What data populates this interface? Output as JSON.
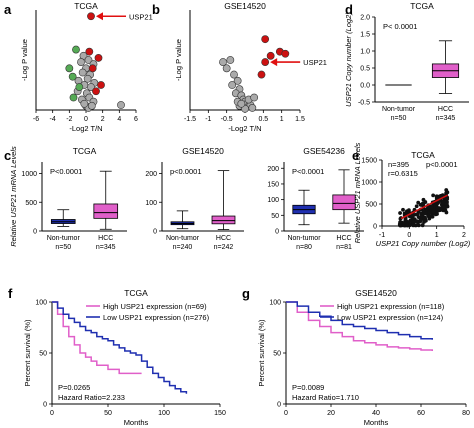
{
  "chart_data": [
    {
      "panel": "a",
      "type": "scatter",
      "title": "TCGA",
      "xlabel": "-Log2 T/N",
      "ylabel": "-Log P value",
      "xlim": [
        -6,
        6
      ],
      "ylim": [
        0,
        24
      ],
      "xticks": [
        "-6",
        "-4",
        "-2",
        "0",
        "2",
        "4",
        "6"
      ],
      "callout": "USP21",
      "callout_point": [
        0.6,
        22.5
      ],
      "series": [
        {
          "color": "#cc1111",
          "points": [
            [
              0.6,
              22.5
            ],
            [
              0.4,
              14
            ],
            [
              1.5,
              12.5
            ],
            [
              0.8,
              10
            ],
            [
              1.8,
              6
            ],
            [
              1.2,
              4.5
            ]
          ]
        },
        {
          "color": "#55aa55",
          "points": [
            [
              -1.2,
              14.5
            ],
            [
              -2.0,
              10
            ],
            [
              -1.6,
              8
            ],
            [
              -0.8,
              5.5
            ],
            [
              -1.5,
              3
            ]
          ]
        },
        {
          "color": "#aaaaaa",
          "points": [
            [
              -0.3,
              13
            ],
            [
              0.3,
              12
            ],
            [
              -0.6,
              11.5
            ],
            [
              0.9,
              11
            ],
            [
              0,
              10
            ],
            [
              -0.4,
              9
            ],
            [
              0.5,
              8.5
            ],
            [
              0.2,
              7.5
            ],
            [
              -0.9,
              7
            ],
            [
              1.0,
              6.5
            ],
            [
              -0.2,
              6
            ],
            [
              0.6,
              5.5
            ],
            [
              -1.0,
              4.5
            ],
            [
              0.1,
              4
            ],
            [
              0.4,
              3
            ],
            [
              -0.5,
              2.5
            ],
            [
              0.9,
              2
            ],
            [
              0,
              1
            ],
            [
              0.3,
              0.5
            ],
            [
              4.2,
              1.2
            ],
            [
              -0.2,
              1.5
            ],
            [
              0.7,
              1
            ]
          ]
        }
      ]
    },
    {
      "panel": "b",
      "type": "scatter",
      "title": "GSE14520",
      "xlabel": "-Log2 T/N",
      "ylabel": "-Log P value",
      "xlim": [
        -1.5,
        1.5
      ],
      "ylim": [
        0,
        24
      ],
      "xticks": [
        "-1.5",
        "-1",
        "-0.5",
        "0",
        "0.5",
        "1",
        "1.5"
      ],
      "callout": "USP21",
      "callout_point": [
        0.55,
        11.5
      ],
      "series": [
        {
          "color": "#cc1111",
          "points": [
            [
              0.55,
              11.5
            ],
            [
              0.95,
              14
            ],
            [
              0.55,
              17
            ],
            [
              0.7,
              13
            ],
            [
              0.45,
              8.5
            ],
            [
              1.1,
              13.5
            ]
          ]
        },
        {
          "color": "#aaaaaa",
          "points": [
            [
              -0.6,
              11.5
            ],
            [
              -0.4,
              12
            ],
            [
              -0.5,
              10
            ],
            [
              -0.3,
              8.5
            ],
            [
              -0.2,
              7
            ],
            [
              -0.35,
              6
            ],
            [
              -0.15,
              5
            ],
            [
              -0.25,
              4
            ],
            [
              -0.1,
              3.5
            ],
            [
              -0.05,
              2.5
            ],
            [
              0,
              2
            ],
            [
              0.05,
              1.5
            ],
            [
              -0.15,
              1
            ],
            [
              0.1,
              0.8
            ],
            [
              0.15,
              1.2
            ],
            [
              -0.2,
              2
            ],
            [
              0.2,
              0.5
            ],
            [
              0,
              0.3
            ],
            [
              0.1,
              2.5
            ],
            [
              -0.1,
              1.5
            ],
            [
              0.25,
              3
            ]
          ]
        }
      ]
    },
    {
      "panel": "c",
      "type": "box",
      "title": "TCGA",
      "ylabel": "Relative USP21 mRNA Levels",
      "ylim": [
        0,
        1200
      ],
      "yticks": [
        "0",
        "500",
        "1000"
      ],
      "pvalue": "P<0.0001",
      "categories": [
        "Non-tumor",
        "HCC"
      ],
      "ns": [
        "n=50",
        "n=345"
      ],
      "boxes": [
        {
          "color": "#1f2fb0",
          "min": 80,
          "q1": 130,
          "median": 160,
          "q3": 200,
          "max": 370
        },
        {
          "color": "#e05fc9",
          "min": 30,
          "q1": 220,
          "median": 320,
          "q3": 470,
          "max": 1040
        }
      ]
    },
    {
      "panel": "c2",
      "type": "box",
      "title": "GSE14520",
      "ylim": [
        0,
        240
      ],
      "yticks": [
        "0",
        "100",
        "200"
      ],
      "pvalue": "p<0.0001",
      "categories": [
        "Non-tumor",
        "HCC"
      ],
      "ns": [
        "n=240",
        "n=242"
      ],
      "boxes": [
        {
          "color": "#1f2fb0",
          "min": 8,
          "q1": 22,
          "median": 26,
          "q3": 32,
          "max": 70
        },
        {
          "color": "#e05fc9",
          "min": 5,
          "q1": 25,
          "median": 36,
          "q3": 52,
          "max": 210
        }
      ]
    },
    {
      "panel": "c3",
      "type": "box",
      "title": "GSE54236",
      "ylim": [
        0,
        220
      ],
      "yticks": [
        "0",
        "50",
        "100",
        "150",
        "200"
      ],
      "pvalue": "P<0.0001",
      "categories": [
        "Non-tumor",
        "HCC"
      ],
      "ns": [
        "n=80",
        "n=81"
      ],
      "boxes": [
        {
          "color": "#1f2fb0",
          "min": 20,
          "q1": 55,
          "median": 68,
          "q3": 82,
          "max": 130
        },
        {
          "color": "#e05fc9",
          "min": 25,
          "q1": 68,
          "median": 88,
          "q3": 115,
          "max": 195
        }
      ]
    },
    {
      "panel": "d",
      "type": "box",
      "title": "TCGA",
      "ylabel": "USP21 Copy number (Log2)",
      "ylim": [
        -0.5,
        2.0
      ],
      "yticks": [
        "-0.5",
        "0.0",
        "0.5",
        "1.0",
        "1.5",
        "2.0"
      ],
      "pvalue": "P< 0.0001",
      "categories": [
        "Non-tumor",
        "HCC"
      ],
      "ns": [
        "n=50",
        "n=345"
      ],
      "boxes": [
        {
          "color": "#000000",
          "min": 0,
          "q1": 0,
          "median": 0,
          "q3": 0,
          "max": 0
        },
        {
          "color": "#e05fc9",
          "min": -0.25,
          "q1": 0.22,
          "median": 0.42,
          "q3": 0.62,
          "max": 1.3
        }
      ]
    },
    {
      "panel": "e",
      "type": "scatter",
      "title": "TCGA",
      "xlabel": "USP21 Copy number (Log2)",
      "ylabel": "Relative USP21 mRNA Levels",
      "xlim": [
        -1,
        2
      ],
      "ylim": [
        0,
        1500
      ],
      "xticks": [
        "-1",
        "0",
        "1",
        "2"
      ],
      "yticks": [
        "0",
        "500",
        "1000",
        "1500"
      ],
      "annotations": [
        "n=395",
        "r=0.6315",
        "p<0.0001"
      ],
      "fit": {
        "color": "#cc1111",
        "x": [
          -0.3,
          1.4
        ],
        "y": [
          170,
          700
        ]
      }
    },
    {
      "panel": "f",
      "type": "line",
      "title": "TCGA",
      "xlabel": "Months",
      "ylabel": "Percent survival (%)",
      "xlim": [
        0,
        150
      ],
      "ylim": [
        0,
        100
      ],
      "xticks": [
        "0",
        "50",
        "100",
        "150"
      ],
      "yticks": [
        "0",
        "50",
        "100"
      ],
      "stats": [
        "P=0.0265",
        "Hazard Ratio=2.233"
      ],
      "legend": [
        {
          "label": "High USP21 expression (n=69)",
          "color": "#e05fc9"
        },
        {
          "label": "Low USP21 expression (n=276)",
          "color": "#1f2fb0"
        }
      ],
      "series": [
        {
          "color": "#e05fc9",
          "x": [
            0,
            5,
            10,
            15,
            20,
            25,
            30,
            35,
            40,
            45,
            50,
            55,
            60,
            65,
            70,
            75,
            80
          ],
          "y": [
            100,
            88,
            76,
            66,
            58,
            50,
            46,
            42,
            38,
            38,
            34,
            34,
            30,
            30,
            30,
            30,
            30
          ]
        },
        {
          "color": "#1f2fb0",
          "x": [
            0,
            5,
            10,
            15,
            20,
            25,
            30,
            35,
            40,
            45,
            50,
            55,
            60,
            65,
            70,
            75,
            80,
            85,
            90,
            95,
            100,
            105,
            110,
            115,
            120
          ],
          "y": [
            100,
            94,
            88,
            84,
            80,
            76,
            72,
            70,
            66,
            64,
            62,
            58,
            55,
            52,
            50,
            48,
            42,
            36,
            30,
            26,
            22,
            18,
            15,
            12,
            10
          ]
        }
      ]
    },
    {
      "panel": "g",
      "type": "line",
      "title": "GSE14520",
      "xlabel": "Months",
      "ylabel": "Percent survival (%)",
      "xlim": [
        0,
        80
      ],
      "ylim": [
        0,
        100
      ],
      "xticks": [
        "0",
        "20",
        "40",
        "60",
        "80"
      ],
      "yticks": [
        "0",
        "50",
        "100"
      ],
      "stats": [
        "P=0.0089",
        "Hazard Ratio=1.710"
      ],
      "legend": [
        {
          "label": "High USP21 expression (n=118)",
          "color": "#e05fc9"
        },
        {
          "label": "Low USP21 expression (n=124)",
          "color": "#1f2fb0"
        }
      ],
      "series": [
        {
          "color": "#e05fc9",
          "x": [
            0,
            5,
            10,
            15,
            20,
            25,
            30,
            35,
            40,
            45,
            50,
            55,
            60,
            65
          ],
          "y": [
            100,
            90,
            82,
            76,
            70,
            66,
            62,
            60,
            58,
            56,
            55,
            54,
            53,
            52
          ]
        },
        {
          "color": "#1f2fb0",
          "x": [
            0,
            5,
            10,
            15,
            20,
            25,
            30,
            35,
            40,
            45,
            50,
            55,
            60,
            65
          ],
          "y": [
            100,
            96,
            90,
            86,
            82,
            78,
            76,
            74,
            72,
            70,
            68,
            66,
            64,
            63
          ]
        }
      ]
    }
  ]
}
